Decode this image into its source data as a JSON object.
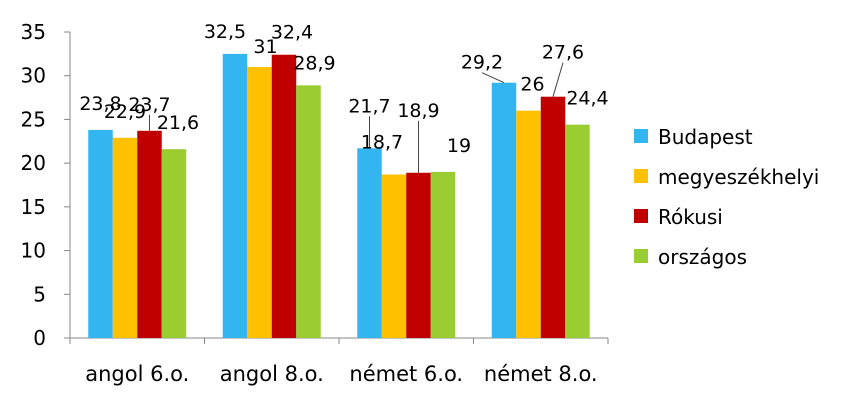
{
  "chart_data": {
    "type": "bar",
    "categories": [
      "angol 6.o.",
      "angol 8.o.",
      "német 6.o.",
      "német 8.o."
    ],
    "series": [
      {
        "name": "Budapest",
        "color": "#33b5f2",
        "values": [
          23.8,
          32.5,
          21.7,
          29.2
        ],
        "labels": [
          "23,8",
          "32,5",
          "21,7",
          "29,2"
        ]
      },
      {
        "name": "megyeszékhelyi",
        "color": "#ffc000",
        "values": [
          22.9,
          31,
          18.7,
          26
        ],
        "labels": [
          "22,9",
          "31",
          "18,7",
          "26"
        ]
      },
      {
        "name": "Rókusi",
        "color": "#c00000",
        "values": [
          23.7,
          32.4,
          18.9,
          27.6
        ],
        "labels": [
          "23,7",
          "32,4",
          "18,9",
          "27,6"
        ]
      },
      {
        "name": "országos",
        "color": "#9acd32",
        "values": [
          21.6,
          28.9,
          19,
          24.4
        ],
        "labels": [
          "21,6",
          "28,9",
          "19",
          "24,4"
        ]
      }
    ],
    "ylim": [
      0,
      35
    ],
    "yticks": [
      0,
      5,
      10,
      15,
      20,
      25,
      30,
      35
    ],
    "grid": false,
    "legend_position": "right"
  }
}
